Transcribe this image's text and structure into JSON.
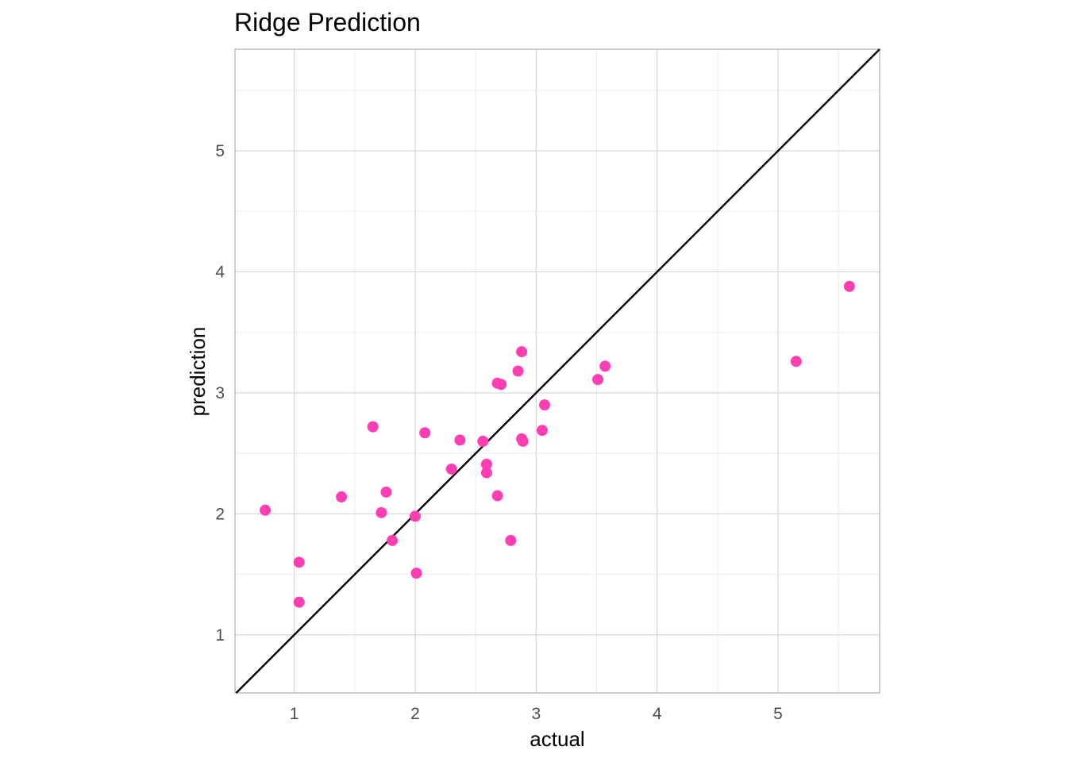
{
  "chart_data": {
    "type": "scatter",
    "title": "Ridge Prediction",
    "xlabel": "actual",
    "ylabel": "prediction",
    "xlim": [
      0.51,
      5.84
    ],
    "ylim": [
      0.52,
      5.84
    ],
    "x_ticks": [
      1,
      2,
      3,
      4,
      5
    ],
    "y_ticks": [
      1,
      2,
      3,
      4,
      5
    ],
    "x_tick_labels": [
      "1",
      "2",
      "3",
      "4",
      "5"
    ],
    "y_tick_labels": [
      "1",
      "2",
      "3",
      "4",
      "5"
    ],
    "grid": true,
    "reference_line": "y = x",
    "point_color": "#ff3eb4",
    "line_color": "#000000",
    "points": [
      {
        "x": 0.76,
        "y": 2.03
      },
      {
        "x": 1.04,
        "y": 1.6
      },
      {
        "x": 1.04,
        "y": 1.27
      },
      {
        "x": 1.39,
        "y": 2.14
      },
      {
        "x": 1.65,
        "y": 2.72
      },
      {
        "x": 1.72,
        "y": 2.01
      },
      {
        "x": 1.76,
        "y": 2.18
      },
      {
        "x": 1.81,
        "y": 1.78
      },
      {
        "x": 2.0,
        "y": 1.98
      },
      {
        "x": 2.01,
        "y": 1.51
      },
      {
        "x": 2.08,
        "y": 2.67
      },
      {
        "x": 2.3,
        "y": 2.37
      },
      {
        "x": 2.37,
        "y": 2.61
      },
      {
        "x": 2.56,
        "y": 2.6
      },
      {
        "x": 2.59,
        "y": 2.41
      },
      {
        "x": 2.59,
        "y": 2.34
      },
      {
        "x": 2.68,
        "y": 2.15
      },
      {
        "x": 2.68,
        "y": 3.08
      },
      {
        "x": 2.71,
        "y": 3.07
      },
      {
        "x": 2.79,
        "y": 1.78
      },
      {
        "x": 2.85,
        "y": 3.18
      },
      {
        "x": 2.88,
        "y": 3.34
      },
      {
        "x": 2.88,
        "y": 2.62
      },
      {
        "x": 2.89,
        "y": 2.6
      },
      {
        "x": 3.05,
        "y": 2.69
      },
      {
        "x": 3.07,
        "y": 2.9
      },
      {
        "x": 3.51,
        "y": 3.11
      },
      {
        "x": 3.57,
        "y": 3.22
      },
      {
        "x": 5.15,
        "y": 3.26
      },
      {
        "x": 5.59,
        "y": 3.88
      }
    ]
  }
}
